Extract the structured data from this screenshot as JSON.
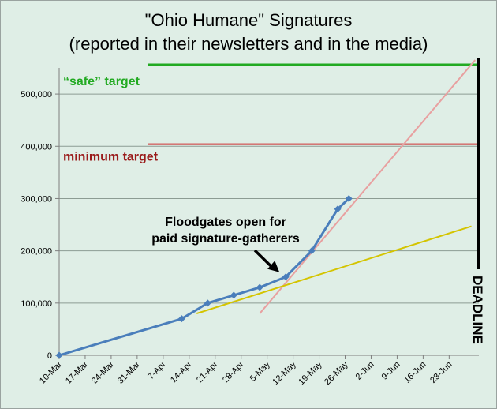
{
  "chart_data": {
    "type": "line",
    "title_line1": "\"Ohio Humane\" Signatures",
    "title_line2": "(reported in their newsletters and in the media)",
    "xlabel": "",
    "ylabel": "",
    "ylim": [
      0,
      550000
    ],
    "yticks": [
      0,
      100000,
      200000,
      300000,
      400000,
      500000
    ],
    "ytick_labels": [
      "0",
      "100,000",
      "200,000",
      "300,000",
      "400,000",
      "500,000"
    ],
    "xlim": [
      "2010-03-10",
      "2010-07-01"
    ],
    "xticks": [
      "2010-03-10",
      "2010-03-17",
      "2010-03-24",
      "2010-03-31",
      "2010-04-07",
      "2010-04-14",
      "2010-04-21",
      "2010-04-28",
      "2010-05-05",
      "2010-05-12",
      "2010-05-19",
      "2010-05-26",
      "2010-06-02",
      "2010-06-09",
      "2010-06-16",
      "2010-06-23"
    ],
    "xtick_labels": [
      "10-Mar",
      "17-Mar",
      "24-Mar",
      "31-Mar",
      "7-Apr",
      "14-Apr",
      "21-Apr",
      "28-Apr",
      "5-May",
      "12-May",
      "19-May",
      "26-May",
      "2-Jun",
      "9-Jun",
      "16-Jun",
      "23-Jun"
    ],
    "grid": true,
    "series": [
      {
        "color": "#4a7ebb",
        "x": [
          "2010-03-10",
          "2010-04-12",
          "2010-04-19",
          "2010-04-26",
          "2010-05-03",
          "2010-05-10",
          "2010-05-17",
          "2010-05-24",
          "2010-05-27"
        ],
        "y": [
          0,
          70000,
          100000,
          115000,
          130000,
          150000,
          200000,
          280000,
          300000
        ]
      }
    ],
    "trendlines": [
      {
        "color": "#e8a0a0",
        "x": [
          "2010-05-03",
          "2010-06-30"
        ],
        "y": [
          80000,
          565000
        ]
      },
      {
        "color": "#d4c400",
        "x": [
          "2010-04-16",
          "2010-06-29"
        ],
        "y": [
          80000,
          247000
        ]
      }
    ],
    "targets": [
      {
        "label": "“safe” target",
        "value": 556000,
        "color": "#22aa22",
        "label_color": "#22aa22"
      },
      {
        "label": "minimum target",
        "value": 404000,
        "color": "#cc3333",
        "label_color": "#9a1b1b"
      }
    ],
    "deadline": {
      "label": "DEADLINE",
      "date": "2010-07-01",
      "color": "#000000"
    },
    "annotation": {
      "line1": "Floodgates open for",
      "line2": "paid signature-gatherers",
      "arrow_to": {
        "x": "2010-05-10",
        "y": 150000
      }
    }
  }
}
